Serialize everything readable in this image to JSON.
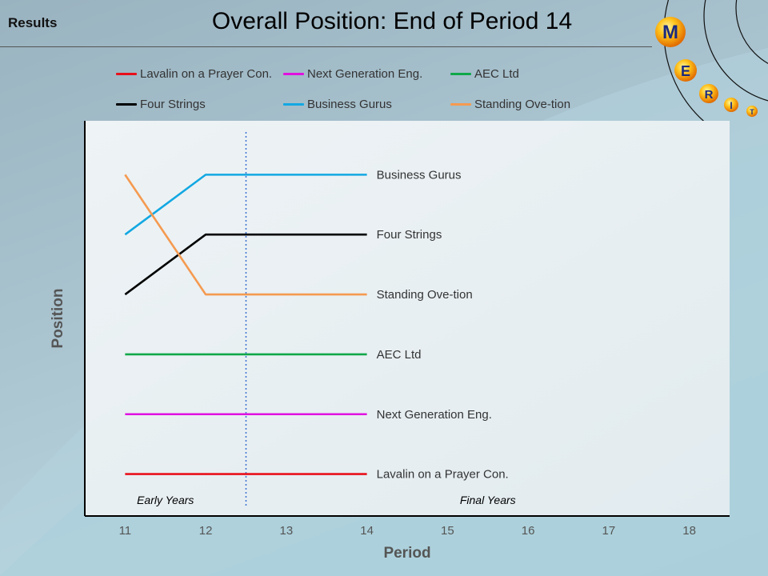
{
  "header": {
    "section_label": "Results",
    "title": "Overall Position: End of Period 14"
  },
  "logo": {
    "letters": [
      "M",
      "E",
      "R",
      "I",
      "T"
    ]
  },
  "colors": {
    "lavalin": "#e8101a",
    "next_gen": "#e012e0",
    "aec": "#10a84a",
    "four_strings": "#000000",
    "business_gurus": "#12a8e2",
    "standing": "#f59a50",
    "divider": "#3a6fd0"
  },
  "chart_data": {
    "type": "line",
    "title": "Overall Position: End of Period 14",
    "xlabel": "Period",
    "ylabel": "Position",
    "x": [
      11,
      12,
      13,
      14
    ],
    "x_ticks": [
      11,
      12,
      13,
      14,
      15,
      16,
      17,
      18
    ],
    "xlim": [
      10.5,
      18.5
    ],
    "ylim": [
      0.3,
      6.9
    ],
    "y_direction": "position 1 at bottom, 6 at top",
    "series": [
      {
        "name": "Lavalin on a Prayer Con.",
        "key": "lavalin",
        "values": [
          1,
          1,
          1,
          1
        ]
      },
      {
        "name": "Next Generation Eng.",
        "key": "next_gen",
        "values": [
          2,
          2,
          2,
          2
        ]
      },
      {
        "name": "AEC Ltd",
        "key": "aec",
        "values": [
          3,
          3,
          3,
          3
        ]
      },
      {
        "name": "Four Strings",
        "key": "four_strings",
        "values": [
          4,
          5,
          5,
          5
        ]
      },
      {
        "name": "Business Gurus",
        "key": "business_gurus",
        "values": [
          5,
          6,
          6,
          6
        ]
      },
      {
        "name": "Standing Ove-tion",
        "key": "standing",
        "values": [
          6,
          4,
          4,
          4
        ]
      }
    ],
    "divider_x": 12.5,
    "annotations": [
      {
        "text": "Early Years",
        "x": 11.5
      },
      {
        "text": "Final Years",
        "x": 15.5
      }
    ],
    "legend": [
      "Lavalin on a Prayer Con.",
      "Next Generation Eng.",
      "AEC Ltd",
      "Four Strings",
      "Business Gurus",
      "Standing Ove-tion"
    ]
  }
}
